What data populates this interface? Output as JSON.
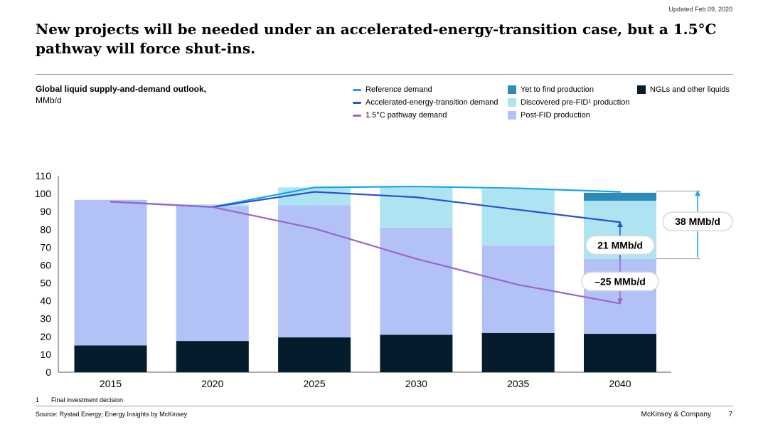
{
  "header": {
    "updated": "Updated Feb 09, 2020",
    "title_line1": "New projects will be needed under an accelerated-energy-transition case, but a 1.5°C",
    "title_line2": "pathway will force shut-ins."
  },
  "legend": {
    "lines": [
      {
        "label": "Reference demand",
        "color": "#1aa3e8"
      },
      {
        "label": "Accelerated-energy-transition demand",
        "color": "#2451d6"
      },
      {
        "label": "1.5°C pathway demand",
        "color": "#9966cc"
      }
    ],
    "boxes": [
      {
        "label": "Yet to find production",
        "color": "#2e8ab8"
      },
      {
        "label": "Discovered pre-FID¹ production",
        "color": "#aee3f2"
      },
      {
        "label": "Post-FID production",
        "color": "#b2c2f7"
      },
      {
        "label": "NGLs and other liquids",
        "color": "#051c2c"
      }
    ]
  },
  "chart_data": {
    "type": "bar",
    "stacked": true,
    "title": "Global liquid supply-and-demand outlook,",
    "ylabel": "MMb/d",
    "ylim": [
      0,
      110
    ],
    "yticks": [
      0,
      10,
      20,
      30,
      40,
      50,
      60,
      70,
      80,
      90,
      100,
      110
    ],
    "categories": [
      "2015",
      "2020",
      "2025",
      "2030",
      "2035",
      "2040"
    ],
    "series": [
      {
        "name": "NGLs and other liquids",
        "color": "#051c2c",
        "values": [
          15,
          17.5,
          19.5,
          21,
          22,
          21.5
        ]
      },
      {
        "name": "Post-FID production",
        "color": "#b2c2f7",
        "values": [
          81.5,
          75.5,
          74,
          60,
          49,
          42
        ]
      },
      {
        "name": "Discovered pre-FID¹ production",
        "color": "#aee3f2",
        "values": [
          0,
          1,
          10,
          22.5,
          31.5,
          32.5
        ]
      },
      {
        "name": "Yet to find production",
        "color": "#2e8ab8",
        "values": [
          0,
          0,
          0,
          0,
          0,
          4.5
        ]
      }
    ],
    "lines": [
      {
        "name": "Reference demand",
        "color": "#1aa3e8",
        "values": [
          null,
          92.5,
          103.5,
          104,
          103,
          101
        ]
      },
      {
        "name": "Accelerated-energy-transition demand",
        "color": "#2451d6",
        "values": [
          95.5,
          92.5,
          101,
          98,
          91,
          84
        ]
      },
      {
        "name": "1.5°C pathway demand",
        "color": "#9966cc",
        "values": [
          95.5,
          92.5,
          80.5,
          63.5,
          49,
          38.5
        ]
      }
    ],
    "annotations": [
      {
        "label": "38 MMb/d",
        "category": "2040",
        "from": 63.5,
        "to": 101.5
      },
      {
        "label": "21 MMb/d",
        "category": "2040",
        "from": 63.5,
        "to": 84
      },
      {
        "label": "–25 MMb/d",
        "category": "2040",
        "from": 38.5,
        "to": 63.5
      }
    ]
  },
  "footer": {
    "footnote_num": "1",
    "footnote_text": "Final investment decision",
    "source": "Source: Rystad Energy; Energy Insights by McKinsey",
    "company": "McKinsey & Company",
    "page": "7"
  }
}
